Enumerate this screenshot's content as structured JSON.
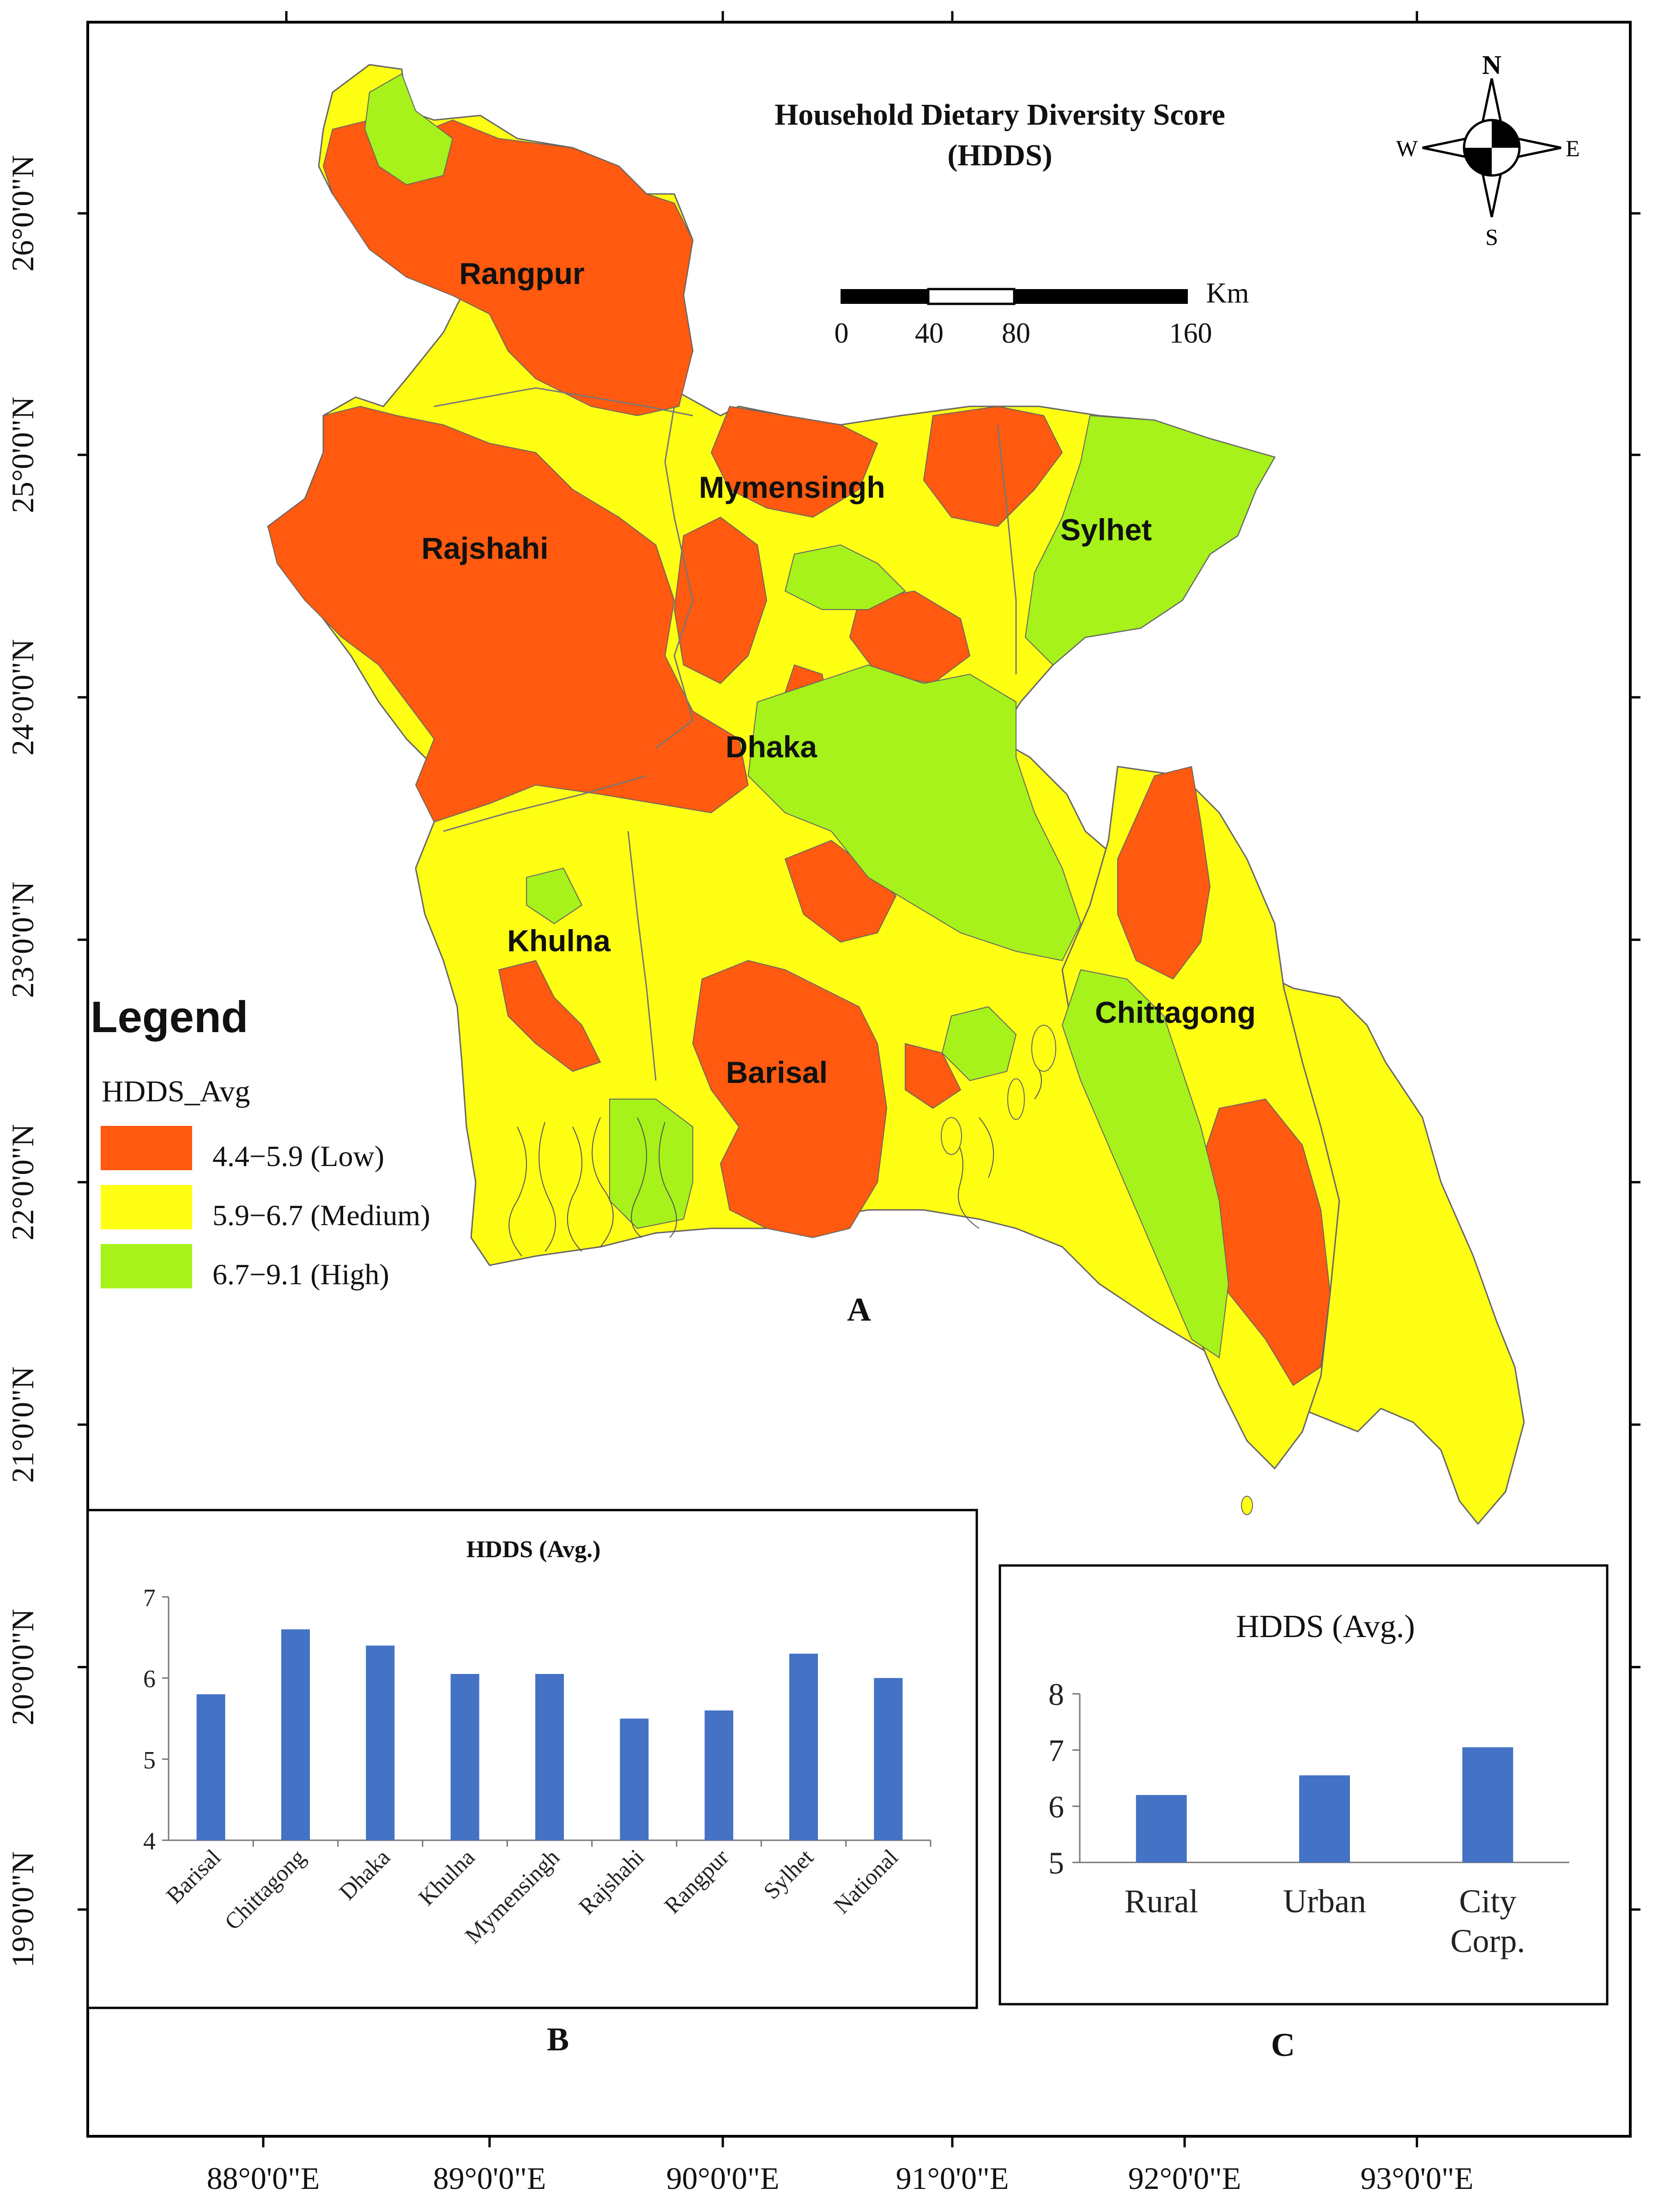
{
  "map": {
    "title_line1": "Household Dietary Diversity Score",
    "title_line2": "(HDDS)",
    "panel_label": "A",
    "lat_labels": [
      "26°0'0\"N",
      "25°0'0\"N",
      "24°0'0\"N",
      "23°0'0\"N",
      "22°0'0\"N",
      "21°0'0\"N",
      "20°0'0\"N",
      "19°0'0\"N"
    ],
    "lon_labels": [
      "88°0'0\"E",
      "89°0'0\"E",
      "90°0'0\"E",
      "91°0'0\"E",
      "92°0'0\"E",
      "93°0'0\"E"
    ],
    "divisions": [
      "Rangpur",
      "Mymensingh",
      "Rajshahi",
      "Sylhet",
      "Dhaka",
      "Khulna",
      "Chittagong",
      "Barisal"
    ],
    "compass": {
      "n": "N",
      "s": "S",
      "e": "E",
      "w": "W"
    },
    "scale_bar": {
      "ticks": [
        "0",
        "40",
        "80",
        "160"
      ],
      "unit": "Km"
    },
    "colors": {
      "low": "#ff5a0f",
      "medium": "#ffff14",
      "high": "#a6f21a",
      "boundary": "#777777"
    }
  },
  "legend": {
    "title": "Legend",
    "field": "HDDS_Avg",
    "items": [
      {
        "label": "4.4−5.9 (Low)",
        "color": "#ff5a0f"
      },
      {
        "label": "5.9−6.7 (Medium)",
        "color": "#ffff14"
      },
      {
        "label": "6.7−9.1 (High)",
        "color": "#a6f21a"
      }
    ]
  },
  "chart_data": [
    {
      "type": "bar",
      "title": "HDDS (Avg.)",
      "panel_label": "B",
      "categories": [
        "Barisal",
        "Chittagong",
        "Dhaka",
        "Khulna",
        "Mymensingh",
        "Rajshahi",
        "Rangpur",
        "Sylhet",
        "National"
      ],
      "values": [
        5.8,
        6.6,
        6.4,
        6.05,
        6.05,
        5.5,
        5.6,
        6.3,
        6.0
      ],
      "ylim": [
        4,
        7
      ],
      "yticks": [
        "4",
        "5",
        "6",
        "7"
      ],
      "bar_color": "#4472c4"
    },
    {
      "type": "bar",
      "title": "HDDS (Avg.)",
      "panel_label": "C",
      "categories": [
        "Rural",
        "Urban",
        "City Corp."
      ],
      "category_lines": [
        [
          "Rural"
        ],
        [
          "Urban"
        ],
        [
          "City",
          "Corp."
        ]
      ],
      "values": [
        6.2,
        6.55,
        7.05
      ],
      "ylim": [
        5,
        8
      ],
      "yticks": [
        "5",
        "6",
        "7",
        "8"
      ],
      "bar_color": "#4472c4"
    }
  ]
}
